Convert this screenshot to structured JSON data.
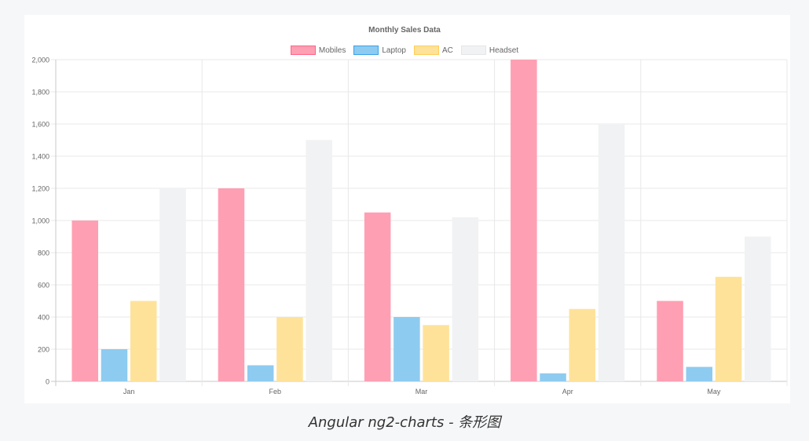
{
  "chart_data": {
    "type": "bar",
    "title": "Monthly Sales Data",
    "categories": [
      "Jan",
      "Feb",
      "Mar",
      "Apr",
      "May"
    ],
    "series": [
      {
        "name": "Mobiles",
        "values": [
          1000,
          1200,
          1050,
          2000,
          500
        ],
        "color": "#ff9fb3",
        "border": "#ff6384"
      },
      {
        "name": "Laptop",
        "values": [
          200,
          100,
          400,
          50,
          90
        ],
        "color": "#8ecbf0",
        "border": "#36a2eb"
      },
      {
        "name": "AC",
        "values": [
          500,
          400,
          350,
          450,
          650
        ],
        "color": "#ffe29a",
        "border": "#ffcd56"
      },
      {
        "name": "Headset",
        "values": [
          1200,
          1500,
          1020,
          1600,
          900
        ],
        "color": "#f1f2f3",
        "border": "#e4e5e7"
      }
    ],
    "ylim": [
      0,
      2000
    ],
    "yticks": [
      "0",
      "200",
      "400",
      "600",
      "800",
      "1,000",
      "1,200",
      "1,400",
      "1,600",
      "1,800",
      "2,000"
    ],
    "grid": true,
    "legend_position": "top"
  },
  "caption": "Angular ng2-charts - 条形图"
}
